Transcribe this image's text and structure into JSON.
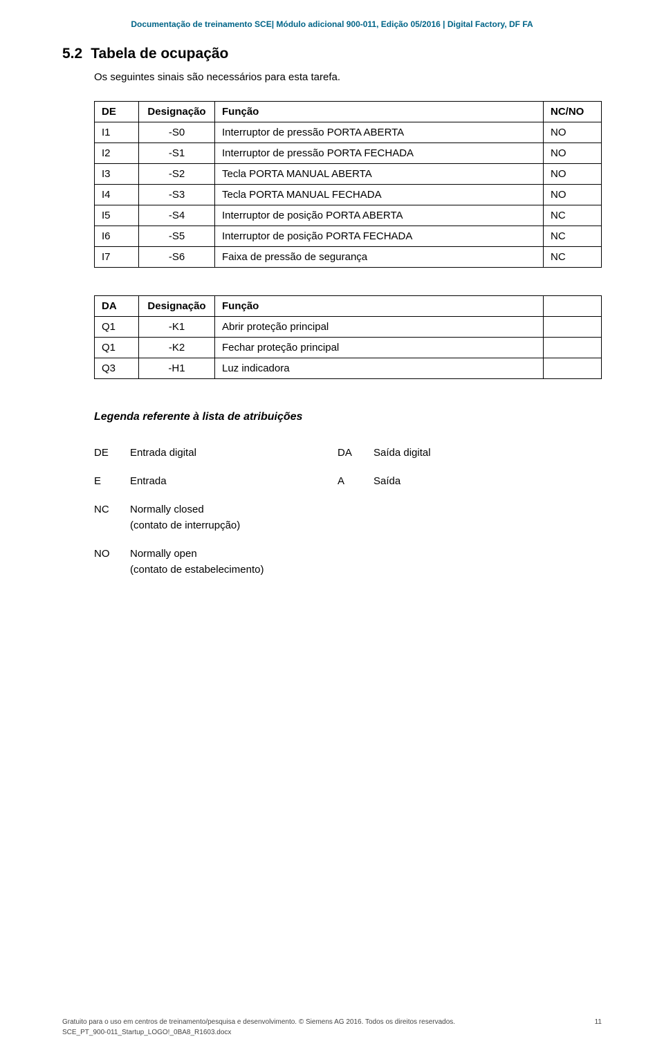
{
  "header": "Documentação de treinamento SCE| Módulo adicional 900-011, Edição 05/2016 | Digital Factory, DF FA",
  "section": {
    "number": "5.2",
    "title": "Tabela de ocupação"
  },
  "intro": "Os seguintes sinais são necessários para esta tarefa.",
  "table1": {
    "headers": [
      "DE",
      "Designação",
      "Função",
      "NC/NO"
    ],
    "rows": [
      [
        "I1",
        "-S0",
        "Interruptor de pressão PORTA ABERTA",
        "NO"
      ],
      [
        "I2",
        "-S1",
        "Interruptor de pressão PORTA FECHADA",
        "NO"
      ],
      [
        "I3",
        "-S2",
        "Tecla PORTA MANUAL ABERTA",
        "NO"
      ],
      [
        "I4",
        "-S3",
        "Tecla PORTA MANUAL FECHADA",
        "NO"
      ],
      [
        "I5",
        "-S4",
        "Interruptor de posição PORTA ABERTA",
        "NC"
      ],
      [
        "I6",
        "-S5",
        "Interruptor de posição PORTA FECHADA",
        "NC"
      ],
      [
        "I7",
        "-S6",
        "Faixa de pressão de segurança",
        "NC"
      ]
    ]
  },
  "table2": {
    "headers": [
      "DA",
      "Designação",
      "Função",
      ""
    ],
    "rows": [
      [
        "Q1",
        "-K1",
        "Abrir proteção principal",
        ""
      ],
      [
        "Q1",
        "-K2",
        "Fechar proteção principal",
        ""
      ],
      [
        "Q3",
        "-H1",
        "Luz indicadora",
        ""
      ]
    ]
  },
  "legend_title": "Legenda referente à lista de atribuições",
  "legend": [
    {
      "c1": "DE",
      "c2": "Entrada digital",
      "c3": "DA",
      "c4": "Saída digital"
    },
    {
      "c1": "E",
      "c2": "Entrada",
      "c3": "A",
      "c4": "Saída"
    },
    {
      "c1": "NC",
      "c2": "Normally closed",
      "sub": "(contato de interrupção)"
    },
    {
      "c1": "NO",
      "c2": "Normally open",
      "sub": "(contato de estabelecimento)"
    }
  ],
  "footer": {
    "text": "Gratuito para o uso em centros de treinamento/pesquisa e desenvolvimento. © Siemens AG 2016. Todos os direitos reservados.",
    "docref": "SCE_PT_900-011_Startup_LOGO!_0BA8_R1603.docx",
    "page": "11"
  }
}
